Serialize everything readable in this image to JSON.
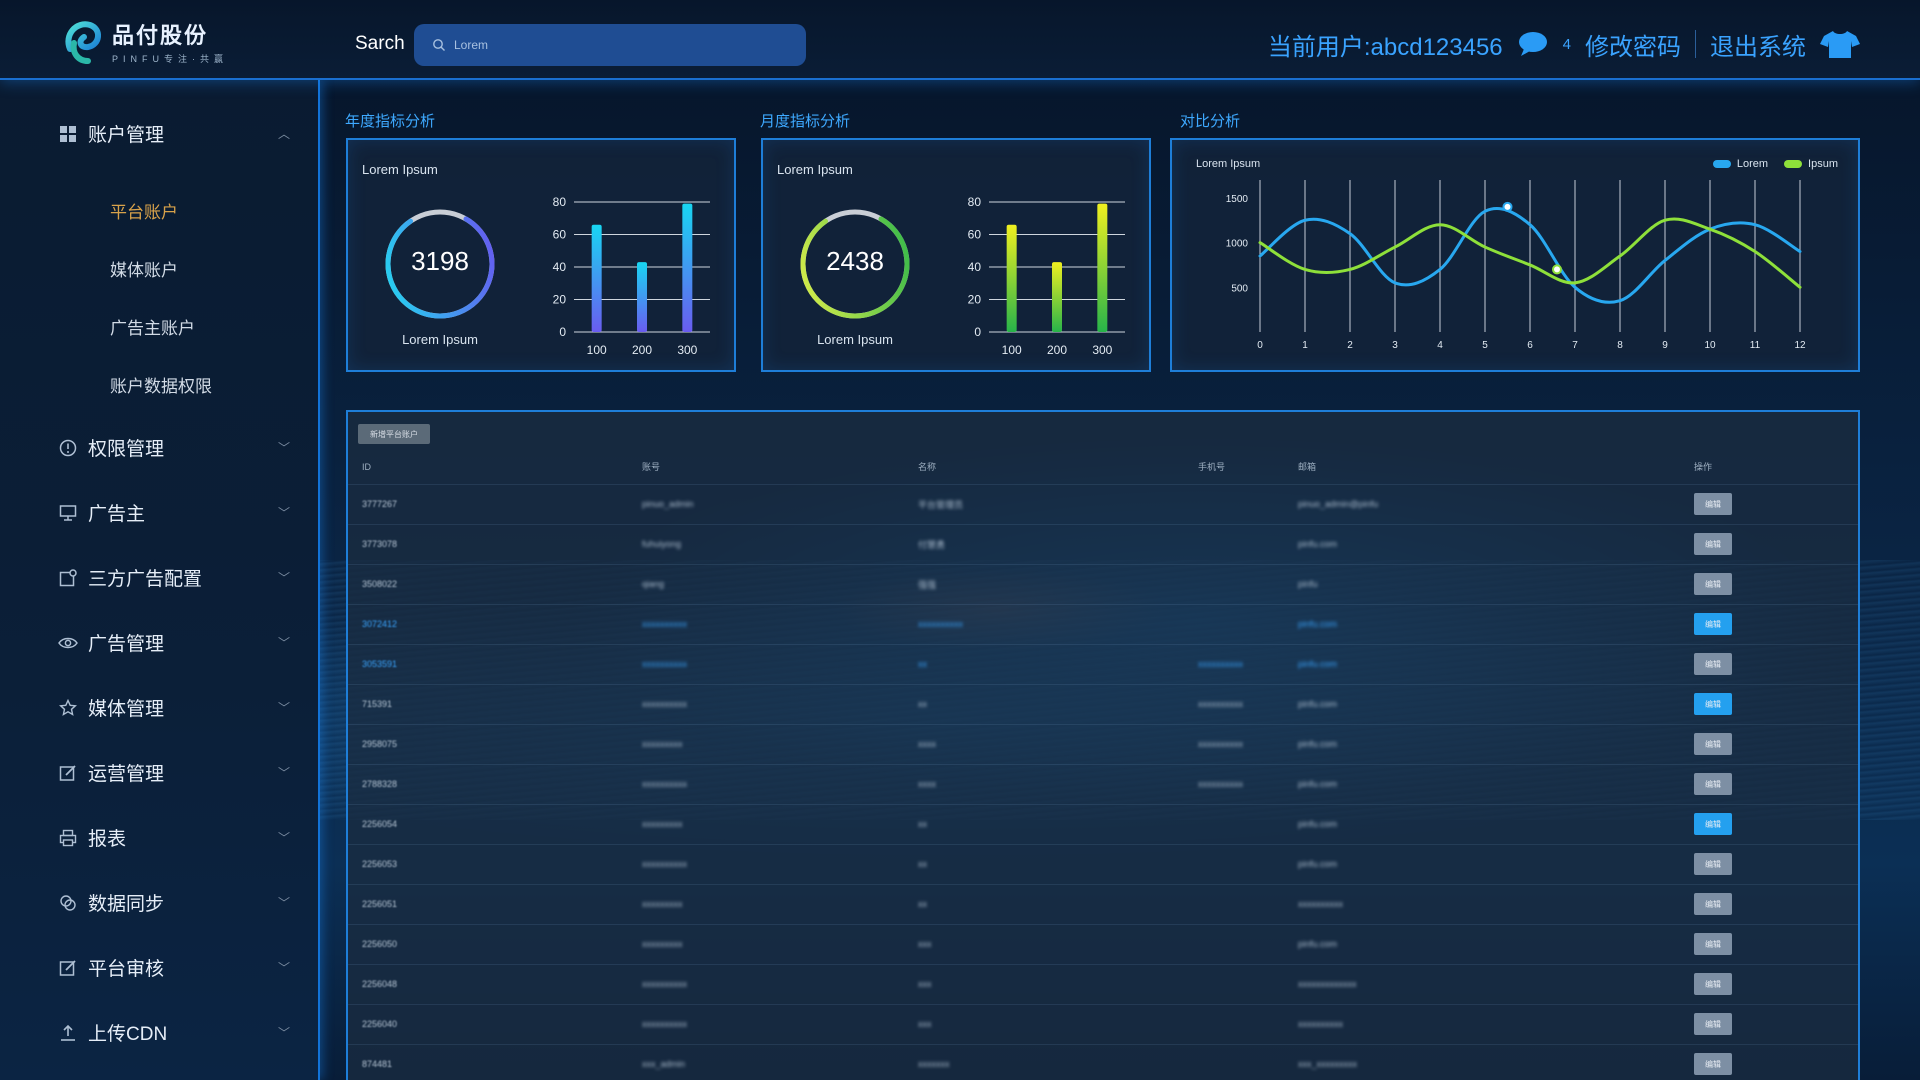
{
  "header": {
    "logo_cn": "品付股份",
    "logo_en": "PINFU专注·共赢",
    "search_label": "Sarch",
    "search_placeholder": "Lorem",
    "current_user": "当前用户:abcd123456",
    "message_count": "4",
    "change_password": "修改密码",
    "logout": "退出系统"
  },
  "sidebar": {
    "account_group": "账户管理",
    "account_items": [
      "平台账户",
      "媒体账户",
      "广告主账户",
      "账户数据权限"
    ],
    "groups": [
      "权限管理",
      "广告主",
      "三方广告配置",
      "广告管理",
      "媒体管理",
      "运营管理",
      "报表",
      "数据同步",
      "平台审核",
      "上传CDN"
    ]
  },
  "sections": {
    "annual": "年度指标分析",
    "monthly": "月度指标分析",
    "compare": "对比分析"
  },
  "annual_panel": {
    "label": "Lorem Ipsum",
    "value": "3198",
    "caption": "Lorem Ipsum",
    "gauge_fraction": 0.82
  },
  "monthly_panel": {
    "label": "Lorem Ipsum",
    "value": "2438",
    "caption": "Lorem Ipsum",
    "gauge_fraction": 0.82
  },
  "compare_panel": {
    "label": "Lorem Ipsum",
    "legend": [
      "Lorem",
      "Ipsum"
    ]
  },
  "chart_data": [
    {
      "type": "bar",
      "categories": [
        "100",
        "200",
        "300"
      ],
      "values": [
        66,
        43,
        79
      ],
      "ylim": [
        0,
        80
      ],
      "yticks": [
        0,
        20,
        40,
        60,
        80
      ],
      "colors": [
        "#18d6f2",
        "#6a5cf0"
      ]
    },
    {
      "type": "bar",
      "categories": [
        "100",
        "200",
        "300"
      ],
      "values": [
        66,
        43,
        79
      ],
      "ylim": [
        0,
        80
      ],
      "yticks": [
        0,
        20,
        40,
        60,
        80
      ],
      "colors": [
        "#f0f020",
        "#27b44a"
      ]
    },
    {
      "type": "line",
      "x": [
        0,
        1,
        2,
        3,
        4,
        5,
        6,
        7,
        8,
        9,
        10,
        11,
        12
      ],
      "ylim": [
        0,
        1700
      ],
      "yticks": [
        500,
        1000,
        1500
      ],
      "series": [
        {
          "name": "Lorem",
          "color": "#28a8f0",
          "values": [
            850,
            1250,
            1100,
            550,
            700,
            1350,
            1200,
            500,
            350,
            800,
            1150,
            1200,
            900
          ]
        },
        {
          "name": "Ipsum",
          "color": "#8ee03a",
          "values": [
            1000,
            700,
            700,
            950,
            1200,
            950,
            750,
            550,
            850,
            1250,
            1150,
            900,
            500
          ]
        }
      ]
    }
  ],
  "table": {
    "add_button": "新增平台账户",
    "columns": [
      "ID",
      "账号",
      "名称",
      "手机号",
      "邮箱",
      "操作"
    ],
    "op_label": "编辑",
    "rows": [
      {
        "id": "3777267",
        "account": "pinuo_admin",
        "name": "平台管理员",
        "phone": "",
        "email": "pinuo_admin@pinfu",
        "highlight": false
      },
      {
        "id": "3773078",
        "account": "fuhuiyong",
        "name": "付慧勇",
        "phone": "",
        "email": "pinfu.com",
        "highlight": false
      },
      {
        "id": "3508022",
        "account": "qiang",
        "name": "强强",
        "phone": "",
        "email": "pinfu",
        "highlight": false
      },
      {
        "id": "3072412",
        "account": "xxxxxxxxxx",
        "name": "xxxxxxxxxx",
        "phone": "",
        "email": "pinfu.com",
        "highlight": true
      },
      {
        "id": "3053591",
        "account": "xxxxxxxxxx",
        "name": "xx",
        "phone": "xxxxxxxxxx",
        "email": "pinfu.com",
        "highlight": true
      },
      {
        "id": "715391",
        "account": "xxxxxxxxxx",
        "name": "xx",
        "phone": "xxxxxxxxxx",
        "email": "pinfu.com",
        "highlight": false
      },
      {
        "id": "2958075",
        "account": "xxxxxxxxx",
        "name": "xxxx",
        "phone": "xxxxxxxxxx",
        "email": "pinfu.com",
        "highlight": false
      },
      {
        "id": "2788328",
        "account": "xxxxxxxxxx",
        "name": "xxxx",
        "phone": "xxxxxxxxxx",
        "email": "pinfu.com",
        "highlight": false
      },
      {
        "id": "2256054",
        "account": "xxxxxxxxx",
        "name": "xx",
        "phone": "",
        "email": "pinfu.com",
        "highlight": false
      },
      {
        "id": "2256053",
        "account": "xxxxxxxxxx",
        "name": "xx",
        "phone": "",
        "email": "pinfu.com",
        "highlight": false
      },
      {
        "id": "2256051",
        "account": "xxxxxxxxx",
        "name": "xx",
        "phone": "",
        "email": "xxxxxxxxxx",
        "highlight": false
      },
      {
        "id": "2256050",
        "account": "xxxxxxxxx",
        "name": "xxx",
        "phone": "",
        "email": "pinfu.com",
        "highlight": false
      },
      {
        "id": "2256048",
        "account": "xxxxxxxxxx",
        "name": "xxx",
        "phone": "",
        "email": "xxxxxxxxxxxxx",
        "highlight": false
      },
      {
        "id": "2256040",
        "account": "xxxxxxxxxx",
        "name": "xxx",
        "phone": "",
        "email": "xxxxxxxxxx",
        "highlight": false
      },
      {
        "id": "874481",
        "account": "xxx_admin",
        "name": "xxxxxxx",
        "phone": "",
        "email": "xxx_xxxxxxxxx",
        "highlight": false
      }
    ],
    "bright_buttons": [
      3,
      5,
      8
    ]
  }
}
